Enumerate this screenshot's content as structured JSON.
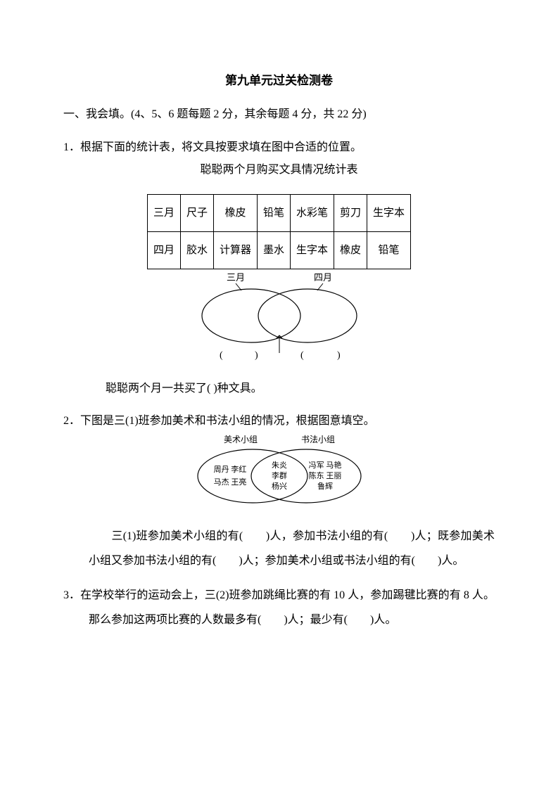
{
  "title": "第九单元过关检测卷",
  "section1": {
    "heading": "一、我会填。(4、5、6 题每题 2 分，其余每题 4 分，共 22 分)"
  },
  "q1": {
    "prompt": "1．根据下面的统计表，将文具按要求填在图中合适的位置。",
    "caption": "聪聪两个月购买文具情况统计表",
    "table": {
      "rows": [
        [
          "三月",
          "尺子",
          "橡皮",
          "铅笔",
          "水彩笔",
          "剪刀",
          "生字本"
        ],
        [
          "四月",
          "胶水",
          "计算器",
          "墨水",
          "生字本",
          "橡皮",
          "铅笔"
        ]
      ]
    },
    "venn": {
      "left_label": "三月",
      "right_label": "四月",
      "left_bracket": "(",
      "right_bracket": ")",
      "left_bracket2": "(",
      "right_bracket2": ")"
    },
    "answer_line": "聪聪两个月一共买了(      )种文具。"
  },
  "q2": {
    "prompt": "2．下图是三(1)班参加美术和书法小组的情况，根据图意填空。",
    "venn": {
      "left_title": "美术小组",
      "right_title": "书法小组",
      "left_names_line1": "周丹  李红",
      "left_names_line2": "马杰  王亮",
      "mid_names_line1": "朱炎",
      "mid_names_line2": "李群",
      "mid_names_line3": "杨兴",
      "right_names_line1": "冯军  马艳",
      "right_names_line2": "陈东  王丽",
      "right_names_line3": "鲁辉"
    },
    "text": "　　三(1)班参加美术小组的有(　　)人，参加书法小组的有(　　)人；既参加美术小组又参加书法小组的有(　　)人；参加美术小组或书法小组的有(　　)人。"
  },
  "q3": {
    "prompt": "3．在学校举行的运动会上，三(2)班参加跳绳比赛的有 10 人，参加踢毽比赛的有 8 人。那么参加这两项比赛的人数最多有(　　)人；最少有(　　)人。"
  }
}
